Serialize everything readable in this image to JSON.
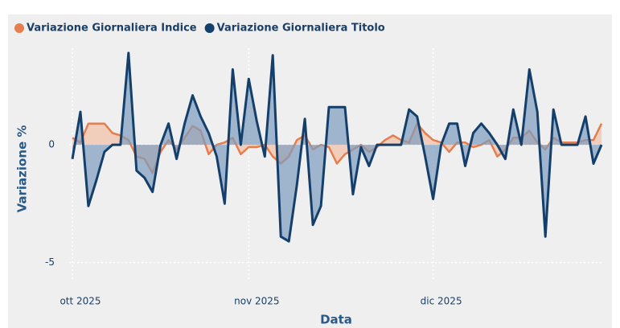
{
  "chart_data": {
    "type": "line",
    "xlabel": "Data",
    "ylabel": "Variazione %",
    "categories": [
      "ott 2025",
      null,
      null,
      null,
      null,
      null,
      null,
      null,
      null,
      null,
      null,
      null,
      null,
      null,
      null,
      null,
      null,
      null,
      null,
      null,
      null,
      null,
      "nov 2025",
      null,
      null,
      null,
      null,
      null,
      null,
      null,
      null,
      null,
      null,
      null,
      null,
      null,
      null,
      null,
      null,
      null,
      null,
      null,
      null,
      null,
      null,
      "dic 2025",
      null,
      null,
      null,
      null,
      null,
      null,
      null,
      null,
      null,
      null,
      null,
      null,
      null,
      null,
      null,
      null,
      null,
      null,
      null,
      null,
      null
    ],
    "series": [
      {
        "name": "Variazione Giornaliera Indice",
        "color": "#e57e4e",
        "fill": "#f2c2ab",
        "values": [
          0.3,
          0.1,
          0.9,
          0.9,
          0.9,
          0.5,
          0.4,
          0.2,
          -0.5,
          -0.6,
          -1.2,
          -0.3,
          0.2,
          -0.2,
          0.3,
          0.8,
          0.6,
          -0.4,
          0,
          0.1,
          0.3,
          -0.4,
          -0.1,
          -0.1,
          0,
          -0.5,
          -0.8,
          -0.5,
          0.2,
          0.4,
          -0.2,
          0,
          -0.1,
          -0.8,
          -0.4,
          -0.2,
          0,
          -0.3,
          -0.1,
          0.2,
          0.4,
          0.2,
          0.1,
          0.9,
          0.5,
          0.2,
          0.1,
          -0.3,
          0.1,
          0.1,
          -0.1,
          0,
          0.2,
          -0.5,
          -0.2,
          0.3,
          0.3,
          0.6,
          0.1,
          -0.2,
          0.3,
          0.1,
          0.1,
          0.1,
          0.2,
          0.2,
          0.9
        ]
      },
      {
        "name": "Variazione Giornaliera Titolo",
        "color": "#143f6b",
        "fill": "#7e9dbf",
        "values": [
          -0.6,
          1.4,
          -2.6,
          -1.5,
          -0.3,
          0,
          0,
          3.9,
          -1.1,
          -1.4,
          -2.0,
          0,
          0.9,
          -0.6,
          0.9,
          2.1,
          1.2,
          0.5,
          -0.5,
          -2.5,
          3.2,
          0,
          2.8,
          1.0,
          -0.5,
          3.8,
          -3.9,
          -4.1,
          -1.7,
          1.1,
          -3.4,
          -2.6,
          1.6,
          1.6,
          1.6,
          -2.1,
          -0.1,
          -0.9,
          0,
          0,
          0,
          0,
          1.5,
          1.2,
          -0.5,
          -2.3,
          0,
          0.9,
          0.9,
          -0.9,
          0.5,
          0.9,
          0.5,
          0,
          -0.6,
          1.5,
          0,
          3.2,
          1.4,
          -3.9,
          1.5,
          0,
          0,
          0,
          1.2,
          -0.8,
          0
        ]
      }
    ],
    "ylim": [
      -5.8,
      4.1
    ],
    "yticks": [
      -5,
      0
    ],
    "grid": true
  }
}
